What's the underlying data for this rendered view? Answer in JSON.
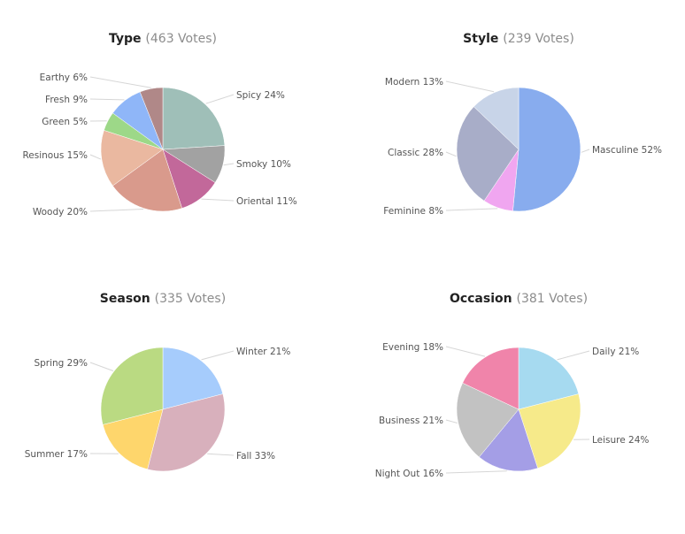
{
  "chart_data": [
    {
      "type": "pie",
      "title": "Type",
      "votes_label": "(463 Votes)",
      "slices": [
        {
          "label": "Spicy",
          "pct_label": "24%",
          "value": 24,
          "color": "#9fbfb8",
          "side": "right"
        },
        {
          "label": "Smoky",
          "pct_label": "10%",
          "value": 10,
          "color": "#a2a2a2",
          "side": "right"
        },
        {
          "label": "Oriental",
          "pct_label": "11%",
          "value": 11,
          "color": "#c2689a",
          "side": "right"
        },
        {
          "label": "Woody",
          "pct_label": "20%",
          "value": 20,
          "color": "#d99a8c",
          "side": "left"
        },
        {
          "label": "Resinous",
          "pct_label": "15%",
          "value": 15,
          "color": "#eab8a0",
          "side": "left"
        },
        {
          "label": "Green",
          "pct_label": "5%",
          "value": 5,
          "color": "#9dd888",
          "side": "left"
        },
        {
          "label": "Fresh",
          "pct_label": "9%",
          "value": 9,
          "color": "#8fb6f8",
          "side": "left"
        },
        {
          "label": "Earthy",
          "pct_label": "6%",
          "value": 6,
          "color": "#b08888",
          "side": "left"
        }
      ]
    },
    {
      "type": "pie",
      "title": "Style",
      "votes_label": "(239 Votes)",
      "slices": [
        {
          "label": "Masculine",
          "pct_label": "52%",
          "value": 52,
          "color": "#88acee",
          "side": "right"
        },
        {
          "label": "Feminine",
          "pct_label": "8%",
          "value": 8,
          "color": "#f0a6f0",
          "side": "left"
        },
        {
          "label": "Classic",
          "pct_label": "28%",
          "value": 28,
          "color": "#a8adc8",
          "side": "left"
        },
        {
          "label": "Modern",
          "pct_label": "13%",
          "value": 13,
          "color": "#c8d4e8",
          "side": "left"
        }
      ]
    },
    {
      "type": "pie",
      "title": "Season",
      "votes_label": "(335 Votes)",
      "slices": [
        {
          "label": "Winter",
          "pct_label": "21%",
          "value": 21,
          "color": "#a6ccfc",
          "side": "right"
        },
        {
          "label": "Fall",
          "pct_label": "33%",
          "value": 33,
          "color": "#d8b0bc",
          "side": "right"
        },
        {
          "label": "Summer",
          "pct_label": "17%",
          "value": 17,
          "color": "#fed66c",
          "side": "left"
        },
        {
          "label": "Spring",
          "pct_label": "29%",
          "value": 29,
          "color": "#bada82",
          "side": "left"
        }
      ]
    },
    {
      "type": "pie",
      "title": "Occasion",
      "votes_label": "(381 Votes)",
      "slices": [
        {
          "label": "Daily",
          "pct_label": "21%",
          "value": 21,
          "color": "#a6daf0",
          "side": "right"
        },
        {
          "label": "Leisure",
          "pct_label": "24%",
          "value": 24,
          "color": "#f6ea8a",
          "side": "right"
        },
        {
          "label": "Night Out",
          "pct_label": "16%",
          "value": 16,
          "color": "#a49ee6",
          "side": "left"
        },
        {
          "label": "Business",
          "pct_label": "21%",
          "value": 21,
          "color": "#c2c2c2",
          "side": "left"
        },
        {
          "label": "Evening",
          "pct_label": "18%",
          "value": 18,
          "color": "#f084aa",
          "side": "left"
        }
      ]
    }
  ]
}
